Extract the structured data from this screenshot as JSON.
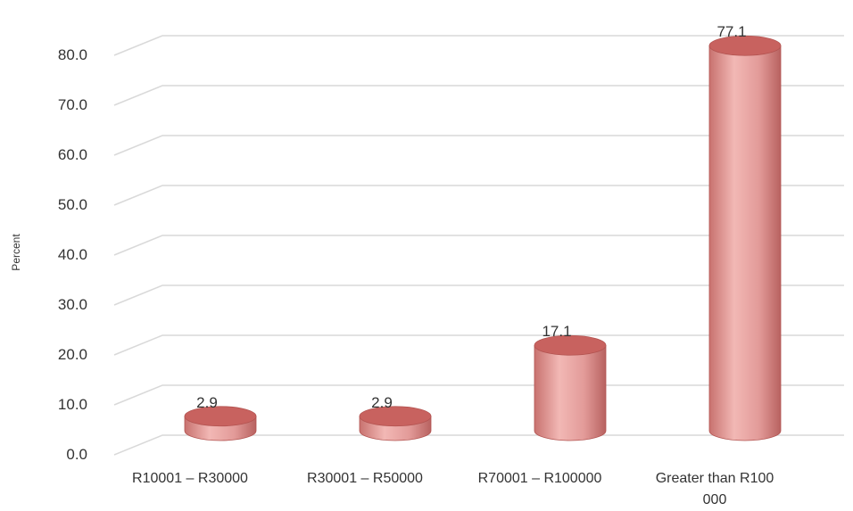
{
  "chart_data": {
    "type": "bar",
    "style": "3d-cylinder",
    "title": "",
    "xlabel": "",
    "ylabel": "Percent",
    "ylim": [
      0,
      80
    ],
    "ytick_step": 10,
    "ytick_labels": [
      "0.0",
      "10.0",
      "20.0",
      "30.0",
      "40.0",
      "50.0",
      "60.0",
      "70.0",
      "80.0"
    ],
    "grid": true,
    "legend": "none",
    "categories": [
      [
        "R10001 – R30000"
      ],
      [
        "R30001 – R50000"
      ],
      [
        "R70001 – R100000"
      ],
      [
        "Greater than R100",
        "000"
      ]
    ],
    "values": [
      2.9,
      2.9,
      17.1,
      77.1
    ],
    "data_labels": [
      "2.9",
      "2.9",
      "17.1",
      "77.1"
    ],
    "colors": {
      "bar_body": "#e29a98",
      "bar_top": "#c8625f",
      "bar_edge": "#b25350",
      "grid": "#d9d9d9"
    }
  }
}
